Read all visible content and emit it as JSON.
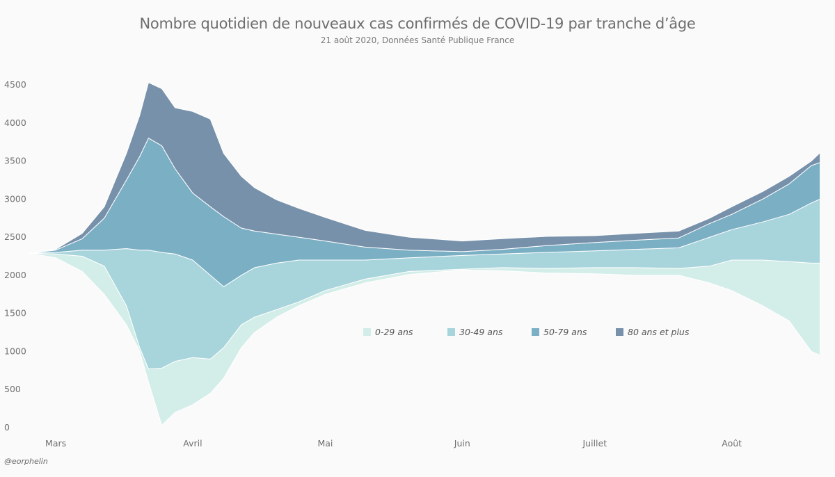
{
  "chart_data": {
    "type": "area",
    "layout": "streamgraph",
    "title": "Nombre quotidien de nouveaux cas confirmés de COVID-19 par tranche d’âge",
    "subtitle": "21 août 2020, Données Santé Publique France",
    "xlabel": "",
    "ylabel": "",
    "ylim": [
      0,
      4600
    ],
    "yticks": [
      0,
      500,
      1000,
      1500,
      2000,
      2500,
      3000,
      3500,
      4000,
      4500
    ],
    "xlim": [
      "2020-02-24",
      "2020-08-21"
    ],
    "xticks": [
      {
        "date": "2020-03-01",
        "label": "Mars"
      },
      {
        "date": "2020-04-01",
        "label": "Avril"
      },
      {
        "date": "2020-05-01",
        "label": "Mai"
      },
      {
        "date": "2020-06-01",
        "label": "Juin"
      },
      {
        "date": "2020-07-01",
        "label": "Juillet"
      },
      {
        "date": "2020-08-01",
        "label": "Août"
      }
    ],
    "legend_position": "center-right",
    "grid": false,
    "boundaries": {
      "dates": [
        "2020-02-24",
        "2020-03-01",
        "2020-03-07",
        "2020-03-12",
        "2020-03-17",
        "2020-03-20",
        "2020-03-22",
        "2020-03-25",
        "2020-03-28",
        "2020-04-01",
        "2020-04-05",
        "2020-04-08",
        "2020-04-12",
        "2020-04-15",
        "2020-04-20",
        "2020-04-25",
        "2020-05-01",
        "2020-05-10",
        "2020-05-20",
        "2020-06-01",
        "2020-06-10",
        "2020-06-20",
        "2020-07-01",
        "2020-07-10",
        "2020-07-20",
        "2020-07-27",
        "2020-08-01",
        "2020-08-08",
        "2020-08-14",
        "2020-08-19",
        "2020-08-21"
      ],
      "bottom": [
        2290,
        2230,
        2050,
        1750,
        1350,
        1000,
        600,
        30,
        200,
        300,
        450,
        650,
        1050,
        1250,
        1450,
        1600,
        1750,
        1900,
        2010,
        2070,
        2060,
        2030,
        2020,
        2000,
        2000,
        1900,
        1800,
        1600,
        1400,
        1000,
        950
      ],
      "b_0_29": [
        2290,
        2280,
        2250,
        2120,
        1600,
        1050,
        770,
        780,
        870,
        920,
        900,
        1050,
        1350,
        1450,
        1550,
        1650,
        1800,
        1950,
        2050,
        2080,
        2100,
        2090,
        2100,
        2100,
        2090,
        2120,
        2200,
        2200,
        2180,
        2160,
        2160
      ],
      "b_30_49": [
        2290,
        2300,
        2330,
        2330,
        2350,
        2330,
        2330,
        2300,
        2280,
        2200,
        2000,
        1850,
        2000,
        2100,
        2160,
        2200,
        2200,
        2200,
        2230,
        2260,
        2280,
        2300,
        2320,
        2340,
        2360,
        2500,
        2600,
        2700,
        2800,
        2950,
        3000
      ],
      "b_50_79": [
        2290,
        2330,
        2480,
        2750,
        3250,
        3560,
        3800,
        3700,
        3400,
        3080,
        2900,
        2770,
        2620,
        2580,
        2540,
        2500,
        2450,
        2370,
        2330,
        2310,
        2340,
        2390,
        2430,
        2460,
        2490,
        2680,
        2800,
        3000,
        3200,
        3440,
        3480
      ],
      "b_80_plus": [
        2290,
        2340,
        2550,
        2900,
        3600,
        4100,
        4530,
        4450,
        4200,
        4150,
        4050,
        3600,
        3300,
        3150,
        2990,
        2880,
        2760,
        2590,
        2500,
        2450,
        2480,
        2510,
        2520,
        2550,
        2580,
        2750,
        2900,
        3100,
        3300,
        3500,
        3610
      ]
    },
    "series": [
      {
        "name": "0-29 ans",
        "color": "#d3ede8",
        "lower": "bottom",
        "upper": "b_0_29"
      },
      {
        "name": "30-49 ans",
        "color": "#a8d4db",
        "lower": "b_0_29",
        "upper": "b_30_49"
      },
      {
        "name": "50-79 ans",
        "color": "#7bafc4",
        "lower": "b_30_49",
        "upper": "b_50_79"
      },
      {
        "name": "80 ans et plus",
        "color": "#7891ab",
        "lower": "b_50_79",
        "upper": "b_80_plus"
      }
    ]
  },
  "credit": "@eorphelin"
}
